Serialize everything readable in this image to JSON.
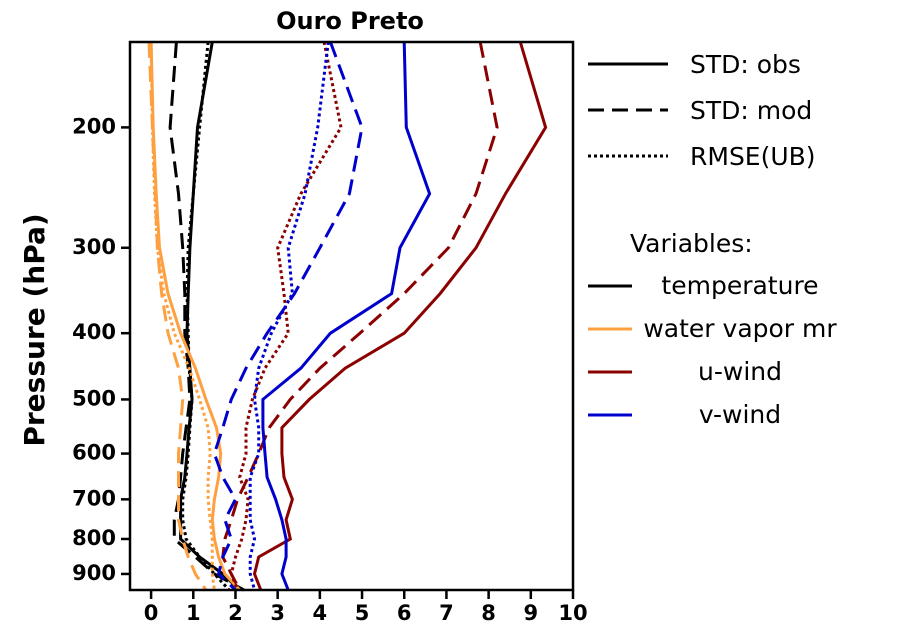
{
  "chart_data": {
    "type": "line",
    "title": "Ouro Preto",
    "y_label": "Pressure (hPa)",
    "y_scale": "log",
    "y_inverted": true,
    "xlim": [
      -0.5,
      10
    ],
    "xticks": [
      0,
      1,
      2,
      3,
      4,
      5,
      6,
      7,
      8,
      9,
      10
    ],
    "ylim": [
      950,
      150
    ],
    "yticks": [
      200,
      300,
      400,
      500,
      600,
      700,
      800,
      900
    ],
    "y": [
      150,
      200,
      250,
      300,
      350,
      400,
      450,
      500,
      550,
      600,
      650,
      700,
      750,
      800,
      850,
      900,
      950
    ],
    "legend_styles": [
      {
        "label": "STD: obs",
        "dash": "solid"
      },
      {
        "label": "STD: mod",
        "dash": "dashed"
      },
      {
        "label": "RMSE(UB)",
        "dash": "dotted"
      }
    ],
    "legend_title": "Variables:",
    "legend_variables": [
      {
        "label": "temperature",
        "color": "#000000"
      },
      {
        "label": "water vapor mr",
        "color": "#ffa040"
      },
      {
        "label": "u-wind",
        "color": "#8b0000"
      },
      {
        "label": "v-wind",
        "color": "#0000cd"
      }
    ],
    "series": [
      {
        "color": "#000000",
        "dash": "solid",
        "values": [
          1.45,
          1.1,
          1.0,
          0.92,
          0.88,
          0.85,
          0.92,
          0.97,
          0.9,
          0.85,
          0.8,
          0.7,
          0.7,
          0.7,
          1.15,
          1.7,
          2.1
        ]
      },
      {
        "color": "#000000",
        "dash": "dashed",
        "values": [
          0.6,
          0.45,
          0.65,
          0.75,
          0.8,
          0.8,
          0.88,
          0.92,
          0.83,
          0.75,
          0.7,
          0.65,
          0.55,
          0.55,
          1.05,
          1.5,
          2.2
        ]
      },
      {
        "color": "#000000",
        "dash": "dotted",
        "values": [
          1.35,
          1.15,
          1.0,
          0.88,
          0.85,
          0.88,
          0.9,
          0.97,
          0.92,
          0.88,
          0.83,
          0.75,
          0.75,
          0.83,
          1.15,
          1.5,
          1.85
        ]
      },
      {
        "color": "#ffa040",
        "dash": "solid",
        "values": [
          0.0,
          0.05,
          0.12,
          0.2,
          0.4,
          0.7,
          1.05,
          1.3,
          1.55,
          1.65,
          1.6,
          1.5,
          1.45,
          1.5,
          1.6,
          1.75,
          2.1
        ]
      },
      {
        "color": "#ffa040",
        "dash": "dashed",
        "values": [
          -0.05,
          0.03,
          0.1,
          0.15,
          0.25,
          0.4,
          0.65,
          0.75,
          0.7,
          0.65,
          0.65,
          0.65,
          0.65,
          0.75,
          0.88,
          1.05,
          1.3
        ]
      },
      {
        "color": "#ffa040",
        "dash": "dotted",
        "values": [
          0.0,
          0.03,
          0.08,
          0.15,
          0.3,
          0.55,
          0.9,
          1.15,
          1.35,
          1.4,
          1.35,
          1.35,
          1.4,
          1.45,
          1.45,
          1.45,
          1.5
        ]
      },
      {
        "color": "#8b0000",
        "dash": "solid",
        "values": [
          8.75,
          9.35,
          8.4,
          7.7,
          6.85,
          6.0,
          4.6,
          3.75,
          3.1,
          3.1,
          3.15,
          3.35,
          3.2,
          3.3,
          2.55,
          2.45,
          2.6
        ]
      },
      {
        "color": "#8b0000",
        "dash": "dashed",
        "values": [
          7.8,
          8.2,
          7.7,
          7.05,
          6.0,
          4.95,
          4.0,
          3.3,
          2.8,
          2.55,
          2.3,
          2.05,
          1.9,
          1.75,
          1.7,
          1.9,
          2.1
        ]
      },
      {
        "color": "#8b0000",
        "dash": "dotted",
        "values": [
          4.1,
          4.5,
          3.55,
          3.0,
          3.15,
          3.25,
          2.7,
          2.4,
          2.25,
          2.25,
          2.1,
          2.3,
          2.25,
          2.15,
          2.0,
          1.9,
          2.05
        ]
      },
      {
        "color": "#0000cd",
        "dash": "solid",
        "values": [
          6.0,
          6.05,
          6.6,
          5.9,
          5.7,
          4.25,
          3.55,
          2.65,
          2.65,
          2.7,
          2.75,
          2.95,
          3.1,
          3.2,
          3.2,
          3.1,
          3.25
        ]
      },
      {
        "color": "#0000cd",
        "dash": "dashed",
        "values": [
          4.25,
          5.0,
          4.7,
          4.0,
          3.4,
          2.75,
          2.25,
          1.9,
          1.7,
          1.5,
          1.7,
          2.0,
          1.75,
          1.9,
          1.7,
          1.6,
          2.0
        ]
      },
      {
        "color": "#0000cd",
        "dash": "dotted",
        "values": [
          4.2,
          3.95,
          3.65,
          3.25,
          3.35,
          2.85,
          2.55,
          2.45,
          2.55,
          2.55,
          2.35,
          2.35,
          2.35,
          2.45,
          2.35,
          2.35,
          2.45
        ]
      }
    ]
  }
}
